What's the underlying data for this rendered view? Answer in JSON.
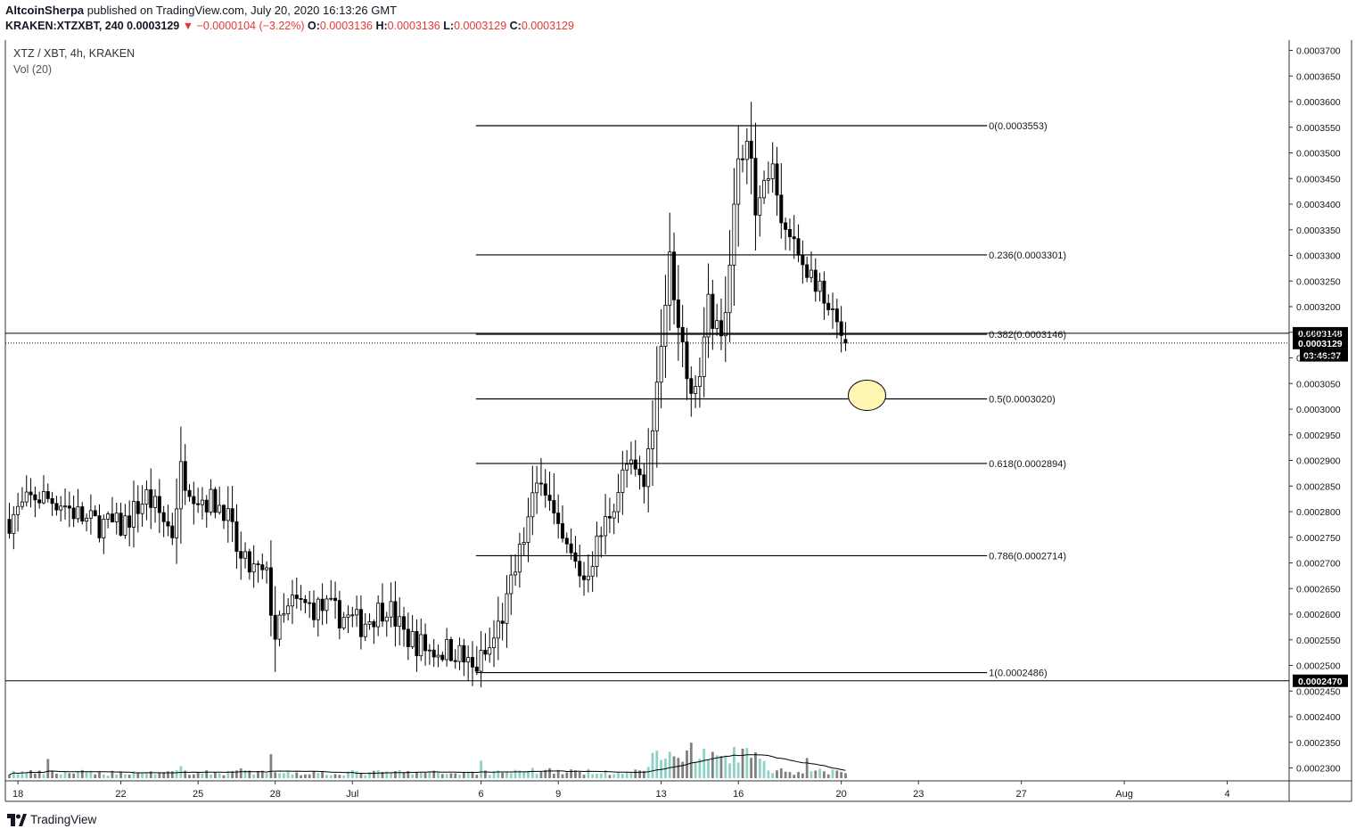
{
  "header": {
    "author": "AltcoinSherpa",
    "published": "published on TradingView.com, July 20, 2020 16:13:26 GMT",
    "symbol": "KRAKEN:XTZXBT, 240",
    "last": "0.0003129",
    "change": "▼ −0.0000104 (−3.22%)",
    "o_label": "O:",
    "o_value": "0.0003136",
    "h_label": "H:",
    "h_value": "0.0003136",
    "l_label": "L:",
    "l_value": "0.0003129",
    "c_label": "C:",
    "c_value": "0.0003129"
  },
  "legend": {
    "pair": "XTZ / XBT, 4h, KRAKEN",
    "volume": "Vol (20)"
  },
  "footer": {
    "brand": "TradingView"
  },
  "colors": {
    "up": "#ffffff",
    "down": "#000000",
    "wick": "#000000",
    "vol_up": "#8fd1c7",
    "vol_down": "#808080",
    "highlight": "#fff6b3"
  },
  "chart_data": {
    "type": "candlestick",
    "price_range": [
      0.000228,
      0.000372
    ],
    "y_ticks": [
      "0.0003700",
      "0.0003650",
      "0.0003600",
      "0.0003550",
      "0.0003500",
      "0.0003450",
      "0.0003400",
      "0.0003350",
      "0.0003300",
      "0.0003250",
      "0.0003200",
      "0.0003150",
      "0.0003100",
      "0.0003050",
      "0.0003000",
      "0.0002950",
      "0.0002900",
      "0.0002850",
      "0.0002800",
      "0.0002750",
      "0.0002700",
      "0.0002650",
      "0.0002600",
      "0.0002550",
      "0.0002500",
      "0.0002450",
      "0.0002400",
      "0.0002350",
      "0.0002300"
    ],
    "x_ticks": [
      {
        "label": "18",
        "bar": 2
      },
      {
        "label": "22",
        "bar": 26
      },
      {
        "label": "25",
        "bar": 44
      },
      {
        "label": "28",
        "bar": 62
      },
      {
        "label": "Jul",
        "bar": 80
      },
      {
        "label": "6",
        "bar": 110
      },
      {
        "label": "9",
        "bar": 128
      },
      {
        "label": "13",
        "bar": 152
      },
      {
        "label": "16",
        "bar": 170
      },
      {
        "label": "20",
        "bar": 194
      },
      {
        "label": "23",
        "bar": 212
      },
      {
        "label": "27",
        "bar": 236
      },
      {
        "label": "Aug",
        "bar": 260
      },
      {
        "label": "4",
        "bar": 284
      }
    ],
    "fib_levels": [
      {
        "label": "0(0.0003553)",
        "price": 0.0003553
      },
      {
        "label": "0.236(0.0003301)",
        "price": 0.0003301
      },
      {
        "label": "0.382(0.0003146)",
        "price": 0.0003146
      },
      {
        "label": "0.5(0.0003020)",
        "price": 0.000302
      },
      {
        "label": "0.618(0.0002894)",
        "price": 0.0002894
      },
      {
        "label": "0.786(0.0002714)",
        "price": 0.0002714
      },
      {
        "label": "1(0.0002486)",
        "price": 0.0002486
      }
    ],
    "fib_bar_range": [
      109,
      228
    ],
    "price_tags": [
      {
        "label": "0.0003148",
        "price": 0.0003148,
        "style": "solid"
      },
      {
        "label": "0.0003129",
        "price": 0.0003129,
        "style": "dotted"
      },
      {
        "label": "03:46:37",
        "price": 0.0003105,
        "style": "timer"
      },
      {
        "label": "0.0002470",
        "price": 0.000247,
        "style": "solid"
      }
    ],
    "highlight": {
      "bar": 200,
      "price": 0.0003027
    },
    "anchors": [
      {
        "bar": 0,
        "price": 0.0002785
      },
      {
        "bar": 6,
        "price": 0.000283
      },
      {
        "bar": 12,
        "price": 0.000282
      },
      {
        "bar": 18,
        "price": 0.000278
      },
      {
        "bar": 26,
        "price": 0.000277
      },
      {
        "bar": 32,
        "price": 0.000283
      },
      {
        "bar": 38,
        "price": 0.000276
      },
      {
        "bar": 40,
        "price": 0.000288
      },
      {
        "bar": 44,
        "price": 0.000283
      },
      {
        "bar": 50,
        "price": 0.000281
      },
      {
        "bar": 54,
        "price": 0.00027
      },
      {
        "bar": 60,
        "price": 0.000267
      },
      {
        "bar": 62,
        "price": 0.000256
      },
      {
        "bar": 66,
        "price": 0.000262
      },
      {
        "bar": 74,
        "price": 0.000261
      },
      {
        "bar": 82,
        "price": 0.000258
      },
      {
        "bar": 88,
        "price": 0.000262
      },
      {
        "bar": 92,
        "price": 0.000256
      },
      {
        "bar": 98,
        "price": 0.000253
      },
      {
        "bar": 104,
        "price": 0.000253
      },
      {
        "bar": 108,
        "price": 0.000249
      },
      {
        "bar": 112,
        "price": 0.000253
      },
      {
        "bar": 116,
        "price": 0.000262
      },
      {
        "bar": 124,
        "price": 0.000288
      },
      {
        "bar": 128,
        "price": 0.000275
      },
      {
        "bar": 134,
        "price": 0.000267
      },
      {
        "bar": 140,
        "price": 0.00028
      },
      {
        "bar": 144,
        "price": 0.000289
      },
      {
        "bar": 148,
        "price": 0.000285
      },
      {
        "bar": 151,
        "price": 0.000305
      },
      {
        "bar": 154,
        "price": 0.000329
      },
      {
        "bar": 157,
        "price": 0.000312
      },
      {
        "bar": 160,
        "price": 0.000302
      },
      {
        "bar": 163,
        "price": 0.00032
      },
      {
        "bar": 166,
        "price": 0.000313
      },
      {
        "bar": 170,
        "price": 0.000347
      },
      {
        "bar": 172,
        "price": 0.000355
      },
      {
        "bar": 174,
        "price": 0.000338
      },
      {
        "bar": 178,
        "price": 0.000346
      },
      {
        "bar": 180,
        "price": 0.000336
      },
      {
        "bar": 184,
        "price": 0.00033
      },
      {
        "bar": 188,
        "price": 0.000325
      },
      {
        "bar": 190,
        "price": 0.00032
      },
      {
        "bar": 195,
        "price": 0.0003129
      }
    ],
    "volume_max": 100
  }
}
